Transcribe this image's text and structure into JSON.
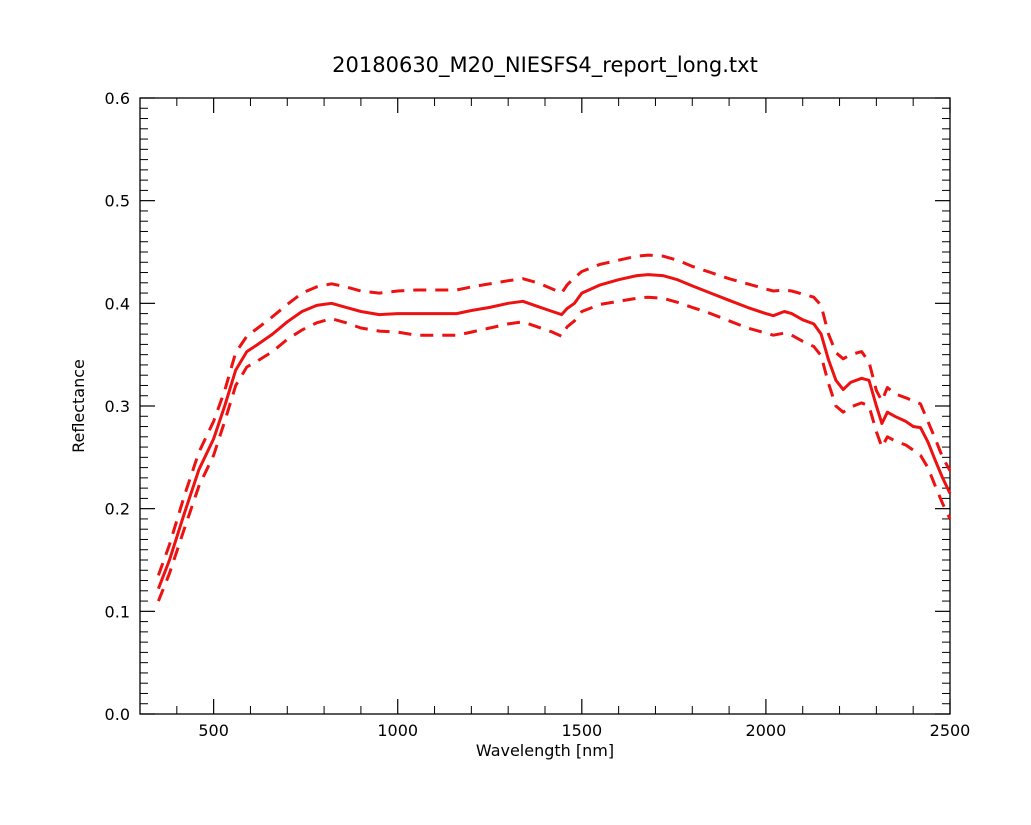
{
  "chart_data": {
    "type": "line",
    "title": "20180630_M20_NIESFS4_report_long.txt",
    "xlabel": "Wavelength [nm]",
    "ylabel": "Reflectance",
    "xlim": [
      300,
      2500
    ],
    "ylim": [
      0.0,
      0.6
    ],
    "x_ticks": [
      500,
      1000,
      1500,
      2000,
      2500
    ],
    "x_tick_labels": [
      "500",
      "1000",
      "1500",
      "2000",
      "2500"
    ],
    "y_ticks": [
      0.0,
      0.1,
      0.2,
      0.3,
      0.4,
      0.5,
      0.6
    ],
    "y_tick_labels": [
      "0.0",
      "0.1",
      "0.2",
      "0.3",
      "0.4",
      "0.5",
      "0.6"
    ],
    "grid": false,
    "legend": "none",
    "series": [
      {
        "role": "mean",
        "color": "#ee1111",
        "dash": "solid",
        "x": [
          350,
          380,
          420,
          460,
          500,
          530,
          560,
          590,
          620,
          660,
          700,
          740,
          780,
          820,
          860,
          900,
          950,
          1000,
          1050,
          1100,
          1160,
          1200,
          1250,
          1300,
          1340,
          1380,
          1420,
          1445,
          1460,
          1480,
          1500,
          1550,
          1600,
          1650,
          1680,
          1720,
          1760,
          1800,
          1850,
          1900,
          1950,
          2000,
          2020,
          2050,
          2070,
          2100,
          2130,
          2150,
          2170,
          2190,
          2210,
          2230,
          2260,
          2280,
          2300,
          2315,
          2330,
          2350,
          2380,
          2400,
          2420,
          2440,
          2460,
          2480,
          2500
        ],
        "y": [
          0.122,
          0.15,
          0.195,
          0.238,
          0.268,
          0.3,
          0.335,
          0.353,
          0.36,
          0.37,
          0.382,
          0.392,
          0.398,
          0.4,
          0.396,
          0.392,
          0.389,
          0.39,
          0.39,
          0.39,
          0.39,
          0.393,
          0.396,
          0.4,
          0.402,
          0.397,
          0.392,
          0.389,
          0.395,
          0.4,
          0.41,
          0.418,
          0.423,
          0.427,
          0.428,
          0.427,
          0.423,
          0.417,
          0.41,
          0.403,
          0.396,
          0.39,
          0.388,
          0.392,
          0.39,
          0.384,
          0.38,
          0.37,
          0.345,
          0.325,
          0.316,
          0.323,
          0.327,
          0.325,
          0.3,
          0.283,
          0.294,
          0.29,
          0.285,
          0.28,
          0.279,
          0.265,
          0.247,
          0.23,
          0.215
        ]
      },
      {
        "role": "upper",
        "color": "#ee1111",
        "dash": "dashed",
        "x": [
          350,
          380,
          420,
          460,
          500,
          530,
          560,
          590,
          620,
          660,
          700,
          740,
          780,
          820,
          860,
          900,
          950,
          1000,
          1050,
          1100,
          1160,
          1200,
          1250,
          1300,
          1340,
          1380,
          1420,
          1445,
          1460,
          1480,
          1500,
          1550,
          1600,
          1650,
          1680,
          1720,
          1760,
          1800,
          1850,
          1900,
          1950,
          2000,
          2020,
          2050,
          2070,
          2100,
          2130,
          2150,
          2170,
          2190,
          2210,
          2230,
          2260,
          2280,
          2300,
          2315,
          2330,
          2350,
          2380,
          2400,
          2420,
          2440,
          2460,
          2480,
          2500
        ],
        "y": [
          0.135,
          0.165,
          0.212,
          0.255,
          0.285,
          0.315,
          0.352,
          0.368,
          0.376,
          0.387,
          0.399,
          0.41,
          0.416,
          0.419,
          0.416,
          0.412,
          0.41,
          0.412,
          0.413,
          0.413,
          0.413,
          0.416,
          0.419,
          0.422,
          0.424,
          0.42,
          0.414,
          0.41,
          0.418,
          0.425,
          0.431,
          0.438,
          0.442,
          0.446,
          0.447,
          0.446,
          0.442,
          0.436,
          0.43,
          0.424,
          0.419,
          0.414,
          0.412,
          0.413,
          0.412,
          0.409,
          0.406,
          0.398,
          0.37,
          0.352,
          0.346,
          0.35,
          0.353,
          0.343,
          0.315,
          0.305,
          0.318,
          0.312,
          0.308,
          0.305,
          0.302,
          0.285,
          0.268,
          0.25,
          0.237
        ]
      },
      {
        "role": "lower",
        "color": "#ee1111",
        "dash": "dashed",
        "x": [
          350,
          380,
          420,
          460,
          500,
          530,
          560,
          590,
          620,
          660,
          700,
          740,
          780,
          820,
          860,
          900,
          950,
          1000,
          1050,
          1100,
          1160,
          1200,
          1250,
          1300,
          1340,
          1380,
          1420,
          1445,
          1460,
          1480,
          1500,
          1550,
          1600,
          1650,
          1680,
          1720,
          1760,
          1800,
          1850,
          1900,
          1950,
          2000,
          2020,
          2050,
          2070,
          2100,
          2130,
          2150,
          2170,
          2190,
          2210,
          2230,
          2260,
          2280,
          2300,
          2315,
          2330,
          2350,
          2380,
          2400,
          2420,
          2440,
          2460,
          2480,
          2500
        ],
        "y": [
          0.11,
          0.137,
          0.18,
          0.222,
          0.252,
          0.285,
          0.32,
          0.338,
          0.344,
          0.353,
          0.365,
          0.374,
          0.381,
          0.385,
          0.381,
          0.376,
          0.373,
          0.372,
          0.369,
          0.369,
          0.369,
          0.372,
          0.376,
          0.38,
          0.382,
          0.377,
          0.372,
          0.368,
          0.377,
          0.383,
          0.392,
          0.399,
          0.402,
          0.405,
          0.406,
          0.405,
          0.401,
          0.396,
          0.39,
          0.383,
          0.376,
          0.371,
          0.369,
          0.371,
          0.369,
          0.363,
          0.358,
          0.349,
          0.322,
          0.3,
          0.294,
          0.299,
          0.303,
          0.3,
          0.275,
          0.26,
          0.27,
          0.266,
          0.262,
          0.257,
          0.252,
          0.24,
          0.222,
          0.205,
          0.19
        ]
      }
    ]
  }
}
